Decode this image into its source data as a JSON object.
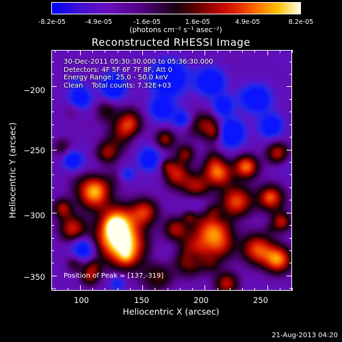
{
  "colorbar": {
    "ticks": [
      "-8.2e-05",
      "-4.9e-05",
      "-1.6e-05",
      "1.6e-05",
      "4.9e-05",
      "8.2e-05"
    ],
    "units": "(photons cm⁻² s⁻¹ asec⁻²)"
  },
  "chart_data": {
    "type": "heatmap",
    "title": "Reconstructed RHESSI Image",
    "xlabel": "Heliocentric X (arcsec)",
    "ylabel": "Heliocentric Y (arcsec)",
    "xlim": [
      77,
      270
    ],
    "ylim": [
      -362,
      -171
    ],
    "x_ticks": [
      100,
      150,
      200,
      250
    ],
    "y_ticks": [
      -200,
      -250,
      -300,
      -350
    ],
    "y_tick_labels": [
      "−200",
      "−250",
      "−300",
      "−350"
    ],
    "color_range": [
      -8.2e-05,
      8.2e-05
    ],
    "info_lines": [
      "30-Dec-2011 05:30:30.000 to 05:36:30.000",
      "Detectors: 4F 5F 6F 7F 8F, Att 0",
      "Energy Range: 25.0 - 50.0 keV",
      "Clean    Total counts: 7.32E+03"
    ],
    "peak_label": "Position of Peak = [137,-319]",
    "peak": [
      137,
      -319
    ]
  },
  "timestamp": "21-Aug-2013 04:20"
}
